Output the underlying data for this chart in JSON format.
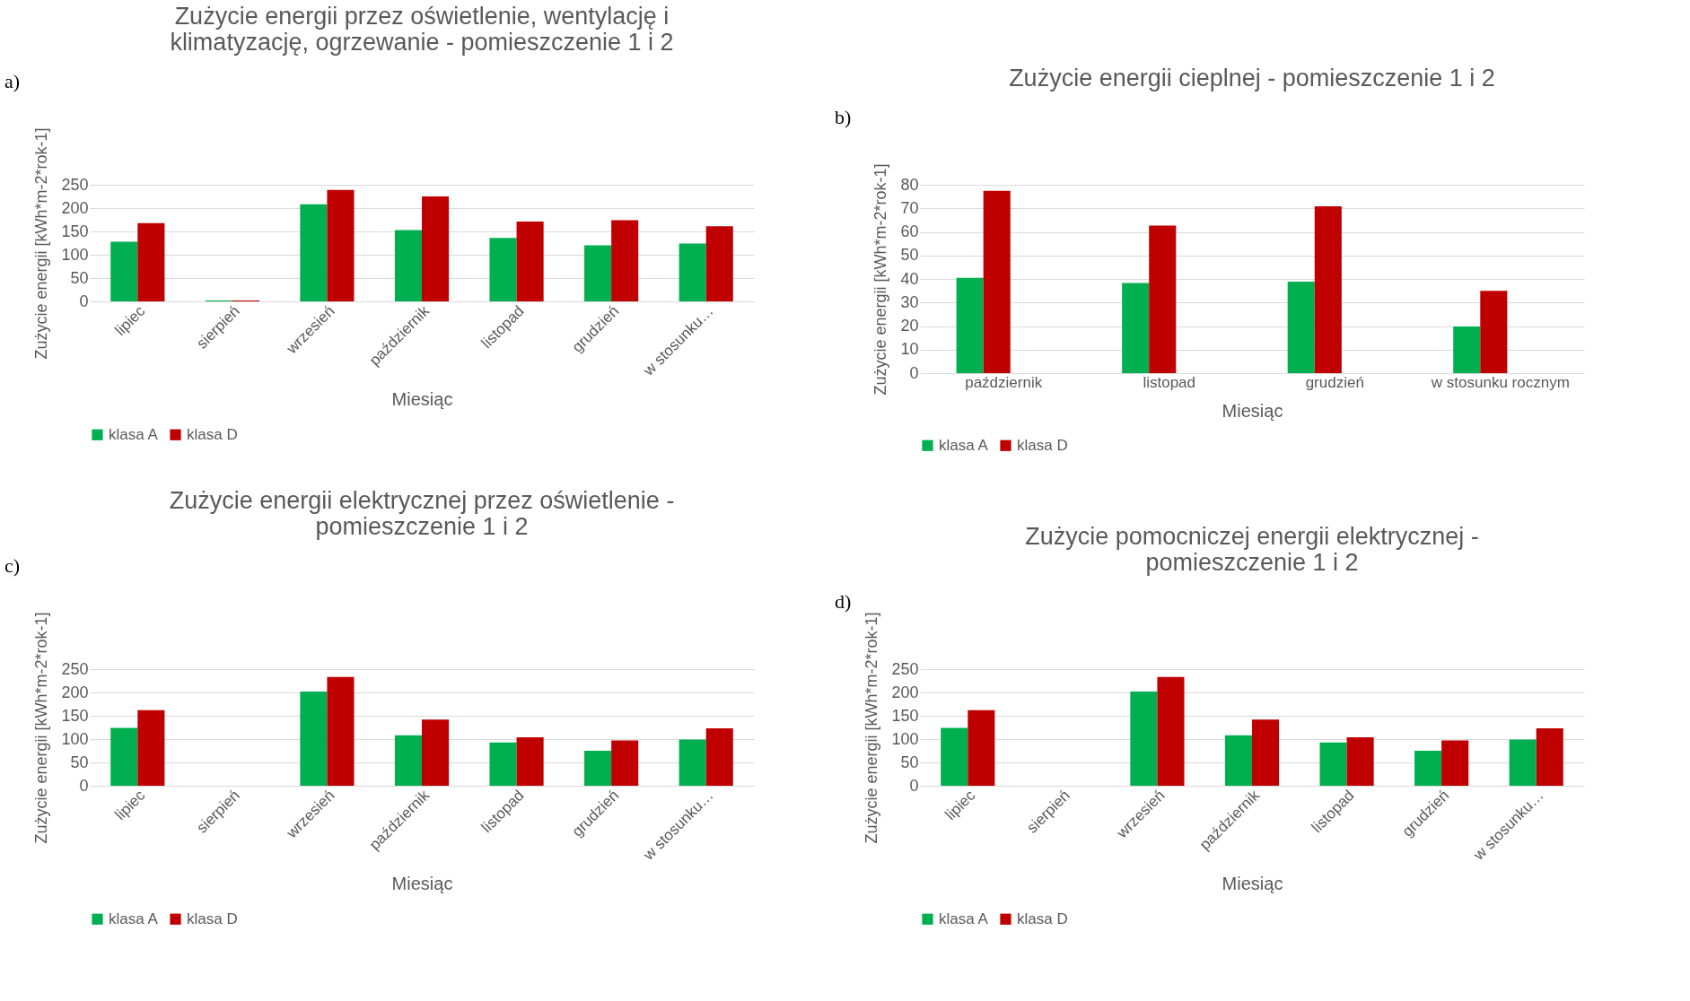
{
  "chart_data": [
    {
      "type": "bar",
      "title": "Zużycie energii przez oświetlenie, wentylację i klimatyzację, ogrzewanie - pomieszczenie 1 i 2",
      "xlabel": "Miesiąc",
      "ylabel": "Zużycie energii [kWh*m-2*rok-1]",
      "annotations": [
        "a)"
      ],
      "categories": [
        "lipiec",
        "sierpień",
        "wrzesień",
        "październik",
        "listopad",
        "grudzień",
        "w stosunku…"
      ],
      "series": [
        {
          "name": "klasa A",
          "color": "#00b050",
          "values": [
            128,
            2,
            208,
            153,
            136,
            120,
            124
          ]
        },
        {
          "name": "klasa D",
          "color": "#c00000",
          "values": [
            168,
            2,
            239,
            225,
            171,
            174,
            161
          ]
        }
      ],
      "ylim": [
        0,
        250
      ],
      "yticks": [
        0,
        50,
        100,
        150,
        200,
        250
      ],
      "grid": "y",
      "legend": "bottom"
    },
    {
      "type": "bar",
      "title": "Zużycie energii cieplnej - pomieszczenie 1 i 2",
      "xlabel": "Miesiąc",
      "ylabel": "Zużycie energii [kWh*m-2*rok-1]",
      "annotations": [
        "b)"
      ],
      "categories": [
        "październik",
        "listopad",
        "grudzień",
        "w stosunku rocznym"
      ],
      "series": [
        {
          "name": "klasa A",
          "color": "#00b050",
          "values": [
            40.5,
            38.3,
            38.9,
            19.8
          ]
        },
        {
          "name": "klasa D",
          "color": "#c00000",
          "values": [
            77.4,
            62.7,
            70.9,
            35.0
          ]
        }
      ],
      "ylim": [
        0,
        80
      ],
      "yticks": [
        0,
        10,
        20,
        30,
        40,
        50,
        60,
        70,
        80
      ],
      "grid": "y",
      "legend": "bottom"
    },
    {
      "type": "bar",
      "title": "Zużycie energii elektrycznej przez oświetlenie - pomieszczenie 1 i 2",
      "xlabel": "Miesiąc",
      "ylabel": "Zużycie energii [kWh*m-2*rok-1]",
      "annotations": [
        "c)"
      ],
      "categories": [
        "lipiec",
        "sierpień",
        "wrzesień",
        "październik",
        "listopad",
        "grudzień",
        "w stosunku…"
      ],
      "series": [
        {
          "name": "klasa A",
          "color": "#00b050",
          "values": [
            124,
            0,
            202,
            108,
            93,
            75,
            99
          ]
        },
        {
          "name": "klasa D",
          "color": "#c00000",
          "values": [
            162,
            0,
            233,
            142,
            104,
            97,
            123
          ]
        }
      ],
      "ylim": [
        0,
        250
      ],
      "yticks": [
        0,
        50,
        100,
        150,
        200,
        250
      ],
      "grid": "y",
      "legend": "bottom"
    },
    {
      "type": "bar",
      "title": "Zużycie pomocniczej energii elektrycznej - pomieszczenie 1 i 2",
      "xlabel": "Miesiąc",
      "ylabel": "Zużycie energii [kWh*m-2*rok-1]",
      "annotations": [
        "d)"
      ],
      "categories": [
        "lipiec",
        "sierpień",
        "wrzesień",
        "październik",
        "listopad",
        "grudzień",
        "w stosunku…"
      ],
      "series": [
        {
          "name": "klasa A",
          "color": "#00b050",
          "values": [
            124,
            0,
            202,
            108,
            93,
            75,
            99
          ]
        },
        {
          "name": "klasa D",
          "color": "#c00000",
          "values": [
            162,
            0,
            233,
            142,
            104,
            97,
            123
          ]
        }
      ],
      "ylim": [
        0,
        250
      ],
      "yticks": [
        0,
        50,
        100,
        150,
        200,
        250
      ],
      "grid": "y",
      "legend": "bottom"
    }
  ]
}
